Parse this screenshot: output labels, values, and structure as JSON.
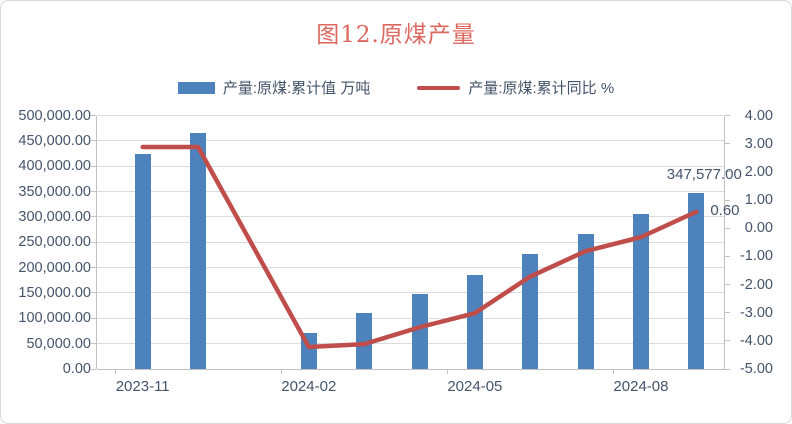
{
  "chart_data": {
    "type": "bar",
    "title": "图12.原煤产量",
    "title_color": "#dc6860",
    "text_color": "#44546a",
    "gridline_color": "#dcdcdc",
    "axis_line_color": "#c2c2c2",
    "categories": [
      "2023-11",
      "2023-12",
      "2024-01",
      "2024-02",
      "2024-03",
      "2024-04",
      "2024-05",
      "2024-06",
      "2024-07",
      "2024-08",
      "2024-09"
    ],
    "x_tick_labels": [
      "2023-11",
      "2024-02",
      "2024-05",
      "2024-08"
    ],
    "x_tick_slots": [
      0,
      3,
      6,
      9
    ],
    "series": [
      {
        "name": "产量:原煤:累计值 万吨",
        "type": "bar",
        "axis": "left",
        "color": "#4d82bc",
        "values": [
          424000,
          466000,
          null,
          70500,
          110600,
          148100,
          186100,
          226600,
          265700,
          304800,
          347577
        ]
      },
      {
        "name": "产量:原煤:累计同比 %",
        "type": "line",
        "axis": "right",
        "color": "#bf4e4b",
        "values": [
          2.9,
          2.9,
          null,
          -4.2,
          -4.1,
          -3.5,
          -3.0,
          -1.7,
          -0.8,
          -0.3,
          0.6
        ]
      }
    ],
    "left_axis": {
      "min": 0,
      "max": 500000,
      "step": 50000,
      "labels": [
        "500,000.00",
        "450,000.00",
        "400,000.00",
        "350,000.00",
        "300,000.00",
        "250,000.00",
        "200,000.00",
        "150,000.00",
        "100,000.00",
        "50,000.00",
        "0.00"
      ]
    },
    "right_axis": {
      "min": -5,
      "max": 4,
      "step": 1,
      "labels": [
        "4.00",
        "3.00",
        "2.00",
        "1.00",
        "0.00",
        "-1.00",
        "-2.00",
        "-3.00",
        "-4.00",
        "-5.00"
      ]
    },
    "data_labels": {
      "last_bar_value": "347,577.00",
      "last_line_value": "0.60"
    },
    "legend_position": "top",
    "grid": true
  }
}
